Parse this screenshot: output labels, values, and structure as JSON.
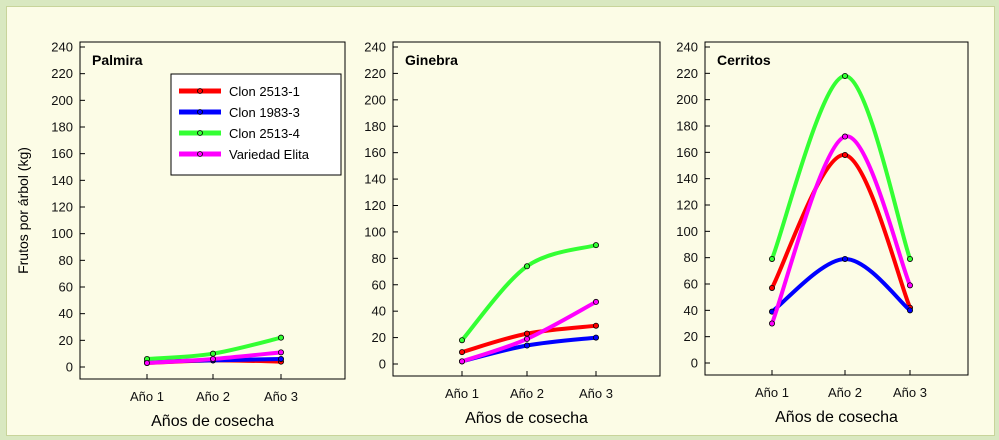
{
  "colors": {
    "clon_2513_1": "#ff0000",
    "clon_1983_3": "#0000ff",
    "clon_2513_4": "#33ff33",
    "variedad_elita": "#ff00ff"
  },
  "chart_data": [
    {
      "type": "line",
      "title": "Palmira",
      "xlabel": "Años de cosecha",
      "ylabel": "Frutos por árbol (kg)",
      "categories": [
        "Año 1",
        "Año 2",
        "Año 3"
      ],
      "ylim": [
        0,
        240
      ],
      "yticks": [
        "0",
        "20",
        "40",
        "60",
        "80",
        "100",
        "120",
        "140",
        "160",
        "180",
        "200",
        "220",
        "240"
      ],
      "legend_position": "top-right",
      "series": [
        {
          "name": "Clon 2513-1",
          "color_key": "clon_2513_1",
          "values": [
            3,
            5,
            4
          ]
        },
        {
          "name": "Clon 1983-3",
          "color_key": "clon_1983_3",
          "values": [
            4,
            5,
            6
          ]
        },
        {
          "name": "Clon 2513-4",
          "color_key": "clon_2513_4",
          "values": [
            6,
            10,
            22
          ]
        },
        {
          "name": "Variedad Elita",
          "color_key": "variedad_elita",
          "values": [
            3,
            6,
            11
          ]
        }
      ]
    },
    {
      "type": "line",
      "title": "Ginebra",
      "xlabel": "Años de cosecha",
      "ylabel": "",
      "categories": [
        "Año 1",
        "Año 2",
        "Año 3"
      ],
      "ylim": [
        0,
        240
      ],
      "yticks": [
        "0",
        "20",
        "40",
        "60",
        "80",
        "100",
        "120",
        "140",
        "160",
        "180",
        "200",
        "220",
        "240"
      ],
      "series": [
        {
          "name": "Clon 2513-1",
          "color_key": "clon_2513_1",
          "values": [
            9,
            23,
            29
          ]
        },
        {
          "name": "Clon 1983-3",
          "color_key": "clon_1983_3",
          "values": [
            2,
            14,
            20
          ]
        },
        {
          "name": "Clon 2513-4",
          "color_key": "clon_2513_4",
          "values": [
            18,
            74,
            90
          ]
        },
        {
          "name": "Variedad Elita",
          "color_key": "variedad_elita",
          "values": [
            2,
            19,
            47
          ]
        }
      ]
    },
    {
      "type": "line",
      "title": "Cerritos",
      "xlabel": "Años de cosecha",
      "ylabel": "",
      "categories": [
        "Año 1",
        "Año 2",
        "Año 3"
      ],
      "ylim": [
        0,
        240
      ],
      "yticks": [
        "0",
        "20",
        "40",
        "60",
        "80",
        "100",
        "120",
        "140",
        "160",
        "180",
        "200",
        "220",
        "240"
      ],
      "series": [
        {
          "name": "Clon 2513-1",
          "color_key": "clon_2513_1",
          "values": [
            57,
            158,
            42
          ]
        },
        {
          "name": "Clon 1983-3",
          "color_key": "clon_1983_3",
          "values": [
            39,
            79,
            40
          ]
        },
        {
          "name": "Clon 2513-4",
          "color_key": "clon_2513_4",
          "values": [
            79,
            218,
            79
          ]
        },
        {
          "name": "Variedad Elita",
          "color_key": "variedad_elita",
          "values": [
            30,
            172,
            59
          ]
        }
      ]
    }
  ]
}
